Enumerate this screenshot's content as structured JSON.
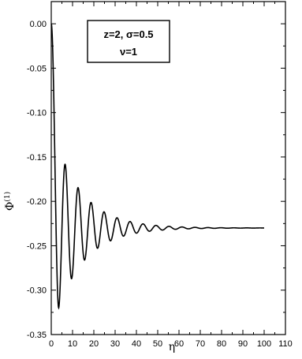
{
  "chart_data": {
    "type": "line",
    "xlabel": "η",
    "ylabel": "Φ",
    "ylabel_sup": "(1)",
    "xlim": [
      0,
      110
    ],
    "ylim": [
      -0.35,
      0.025
    ],
    "x_ticks": [
      0,
      10,
      20,
      30,
      40,
      50,
      60,
      70,
      80,
      90,
      100,
      110
    ],
    "y_ticks": [
      0.0,
      -0.05,
      -0.1,
      -0.15,
      -0.2,
      -0.25,
      -0.3,
      -0.35
    ],
    "x_tick_labels": [
      "0",
      "10",
      "20",
      "30",
      "40",
      "50",
      "60",
      "70",
      "80",
      "90",
      "100",
      "110"
    ],
    "y_tick_labels": [
      "0.00",
      "-0.05",
      "-0.10",
      "-0.15",
      "-0.20",
      "-0.25",
      "-0.30",
      "-0.35"
    ],
    "annotation": {
      "line1": "z=2, σ=0.5",
      "line2": "ν=1"
    },
    "grid": false,
    "series": [
      {
        "color": "#000000",
        "description_points": {
          "x_start": 0,
          "y_start": 0.0,
          "x_end": 100,
          "y_asymptote": -0.23,
          "first_min": [
            3.5,
            -0.32
          ],
          "first_max": [
            6.5,
            -0.13
          ],
          "period": 6.1,
          "decay": 0.075
        }
      }
    ]
  }
}
